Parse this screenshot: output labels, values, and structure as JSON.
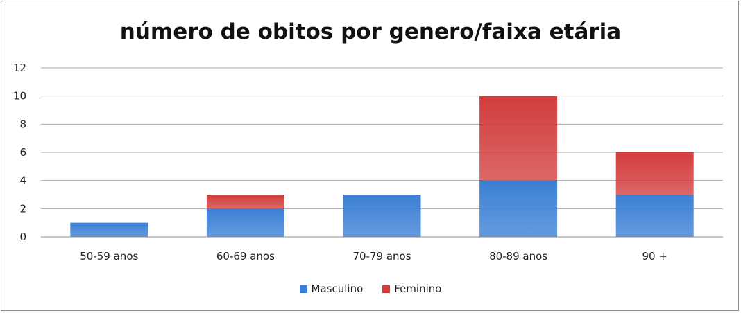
{
  "chart_data": {
    "type": "bar",
    "stacked": true,
    "title": "número de obitos por genero/faixa etária",
    "categories": [
      "50-59 anos",
      "60-69 anos",
      "70-79 anos",
      "80-89 anos",
      "90 +"
    ],
    "series": [
      {
        "name": "Masculino",
        "values": [
          1,
          2,
          3,
          4,
          3
        ],
        "color": "#3a7fd5"
      },
      {
        "name": "Feminino",
        "values": [
          0,
          1,
          0,
          6,
          3
        ],
        "color": "#d23c3c"
      }
    ],
    "yticks": [
      "0",
      "2",
      "4",
      "6",
      "8",
      "10",
      "12"
    ],
    "ylim": [
      0,
      12
    ],
    "grid": true,
    "legend_position": "bottom"
  }
}
